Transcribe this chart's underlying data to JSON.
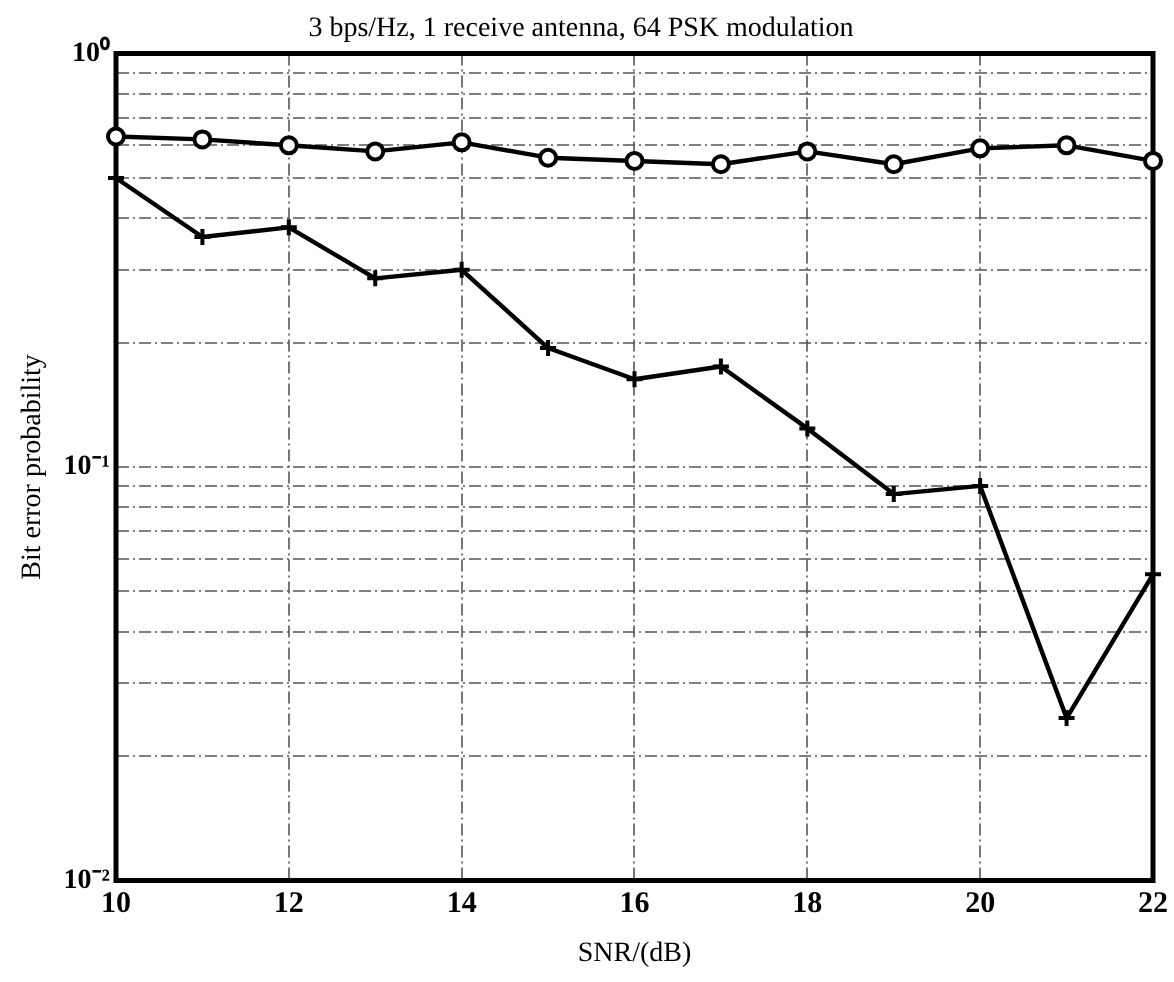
{
  "chart_data": {
    "type": "line",
    "title": "3 bps/Hz, 1 receive antenna, 64 PSK modulation",
    "xlabel": "SNR/(dB)",
    "ylabel": "Bit error probability",
    "x": [
      10,
      11,
      12,
      13,
      14,
      15,
      16,
      17,
      18,
      19,
      20,
      21,
      22
    ],
    "series": [
      {
        "color": "#000000",
        "marker": "circle",
        "values": [
          0.63,
          0.62,
          0.6,
          0.58,
          0.61,
          0.56,
          0.55,
          0.54,
          0.58,
          0.54,
          0.59,
          0.6,
          0.55
        ]
      },
      {
        "color": "#000000",
        "marker": "cross",
        "values": [
          0.5,
          0.36,
          0.38,
          0.286,
          0.3,
          0.194,
          0.163,
          0.175,
          0.124,
          0.086,
          0.09,
          0.0247,
          0.055
        ]
      }
    ],
    "log": "y",
    "grid": true,
    "legend": false,
    "line_style": "solid",
    "xlim": [
      10,
      22
    ],
    "xticks": [
      10,
      12,
      14,
      16,
      18,
      20,
      22
    ],
    "ylim": [
      0.01,
      1
    ],
    "yticks": [
      {
        "value": 0.01,
        "label": "10⁻²"
      },
      {
        "value": 0.02,
        "label": null
      },
      {
        "value": 0.03,
        "label": null
      },
      {
        "value": 0.04,
        "label": null
      },
      {
        "value": 0.05,
        "label": null
      },
      {
        "value": 0.06,
        "label": null
      },
      {
        "value": 0.07,
        "label": null
      },
      {
        "value": 0.08,
        "label": null
      },
      {
        "value": 0.09,
        "label": null
      },
      {
        "value": 0.1,
        "label": "10⁻¹"
      },
      {
        "value": 0.2,
        "label": null
      },
      {
        "value": 0.3,
        "label": null
      },
      {
        "value": 0.4,
        "label": null
      },
      {
        "value": 0.5,
        "label": null
      },
      {
        "value": 0.6,
        "label": null
      },
      {
        "value": 0.7,
        "label": null
      },
      {
        "value": 0.8,
        "label": null
      },
      {
        "value": 0.9,
        "label": null
      },
      {
        "value": 1,
        "label": "10⁰"
      }
    ]
  }
}
